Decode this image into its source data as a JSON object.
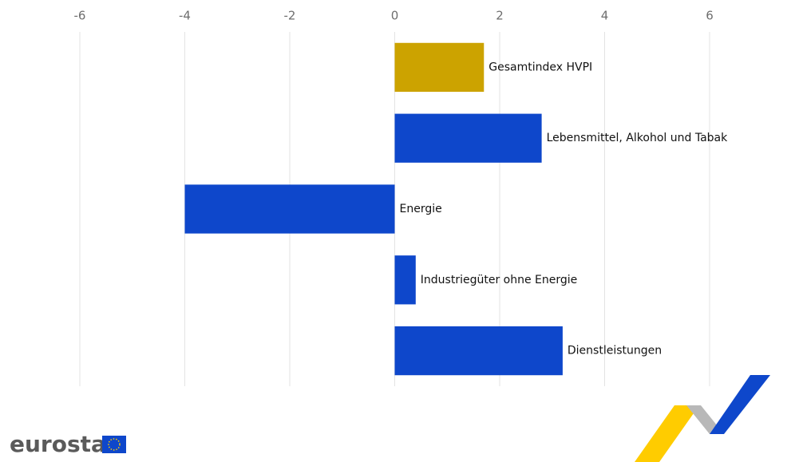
{
  "chart_data": {
    "type": "barh",
    "categories": [
      "Gesamtindex HVPI",
      "Lebensmittel, Alkohol und Tabak",
      "Energie",
      "Industriegüter ohne Energie",
      "Dienstleistungen"
    ],
    "values": [
      1.7,
      2.8,
      -4.0,
      0.4,
      3.2
    ],
    "colors": [
      "#cca300",
      "#0e47cb",
      "#0e47cb",
      "#0e47cb",
      "#0e47cb"
    ],
    "xlim": [
      -6,
      6
    ],
    "xticks": [
      -6,
      -4,
      -2,
      0,
      2,
      4,
      6
    ],
    "grid": true
  },
  "logo": "eurostat"
}
